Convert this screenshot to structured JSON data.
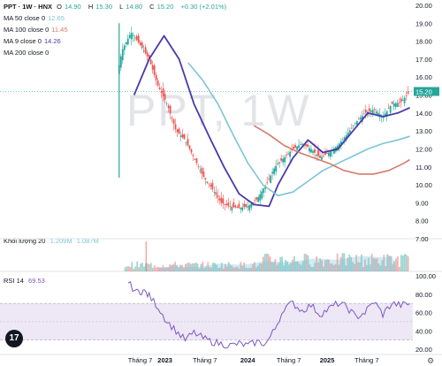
{
  "header": {
    "symbol": "PPT · 1W · HNX",
    "ohlc": [
      {
        "k": "O",
        "v": "14.90"
      },
      {
        "k": "H",
        "v": "15.30"
      },
      {
        "k": "L",
        "v": "14.80"
      },
      {
        "k": "C",
        "v": "15.20"
      }
    ],
    "change": "+0.30 (+2.01%)"
  },
  "indicators": [
    {
      "label": "MA 50 close 0",
      "value": "12.65",
      "color": "#7dc4d8"
    },
    {
      "label": "MA 100 close 0",
      "value": "11.45",
      "color": "#d27b6a"
    },
    {
      "label": "MA 9 close 0",
      "value": "14.26",
      "color": "#4a3aa8"
    },
    {
      "label": "MA 200 close 0",
      "value": "",
      "color": "#999999"
    }
  ],
  "watermark": "PPT, 1W",
  "volume_legend": {
    "label": "Khối lượng 20",
    "v1": "1.209M",
    "v2": "1.087M"
  },
  "rsi_legend": {
    "label": "RSI 14",
    "value": "69.53"
  },
  "price_tag": "15.20",
  "tv_logo": "17",
  "colors": {
    "up": "#26a69a",
    "down": "#ef5350",
    "ma50": "#7dc4d8",
    "ma100": "#d27b6a",
    "ma9": "#4a3aa8",
    "rsi": "#7e57c2",
    "rsi_band": "#ede7f6"
  },
  "chart_data": {
    "type": "line",
    "title": "",
    "price_axis": {
      "ticks": [
        "20.00",
        "19.00",
        "18.00",
        "17.00",
        "16.00",
        "15.00",
        "14.00",
        "13.00",
        "12.00",
        "11.00",
        "10.00",
        "9.00",
        "8.00",
        "7.00"
      ],
      "ylim": [
        7,
        20
      ]
    },
    "rsi_axis": {
      "ticks": [
        "100.00",
        "80.00",
        "60.00",
        "40.00",
        "20.00"
      ],
      "ylim": [
        20,
        100
      ],
      "band": [
        30,
        70
      ]
    },
    "x_ticks": [
      {
        "label": "Tháng 7",
        "t": 0.09
      },
      {
        "label": "2023",
        "t": 0.173
      },
      {
        "label": "Tháng 7",
        "t": 0.306
      },
      {
        "label": "2024",
        "t": 0.449
      },
      {
        "label": "Tháng 7",
        "t": 0.586
      },
      {
        "label": "2025",
        "t": 0.714
      },
      {
        "label": "Tháng 7",
        "t": 0.846
      }
    ],
    "series": [
      {
        "name": "MA 9",
        "t": [
          0.07,
          0.12,
          0.17,
          0.22,
          0.27,
          0.32,
          0.37,
          0.42,
          0.47,
          0.52,
          0.55,
          0.6,
          0.65,
          0.7,
          0.75,
          0.8,
          0.85,
          0.9,
          0.95,
          0.99
        ],
        "values": [
          15.0,
          17.0,
          18.3,
          17.0,
          14.5,
          12.7,
          11.0,
          9.5,
          8.9,
          8.8,
          10.0,
          11.5,
          12.5,
          11.8,
          12.0,
          13.0,
          14.0,
          13.8,
          14.0,
          14.3
        ]
      },
      {
        "name": "MA 50",
        "t": [
          0.25,
          0.3,
          0.35,
          0.4,
          0.45,
          0.5,
          0.55,
          0.6,
          0.65,
          0.7,
          0.75,
          0.8,
          0.85,
          0.9,
          0.95,
          0.99
        ],
        "values": [
          16.8,
          15.8,
          14.5,
          12.8,
          11.2,
          10.0,
          9.4,
          9.6,
          10.2,
          10.8,
          11.2,
          11.6,
          12.0,
          12.3,
          12.5,
          12.7
        ]
      },
      {
        "name": "MA 100",
        "t": [
          0.47,
          0.52,
          0.57,
          0.62,
          0.67,
          0.72,
          0.77,
          0.82,
          0.87,
          0.92,
          0.97,
          0.99
        ],
        "values": [
          13.3,
          12.8,
          12.2,
          11.8,
          11.5,
          11.2,
          10.8,
          10.6,
          10.6,
          10.8,
          11.2,
          11.4
        ]
      }
    ],
    "price_envelope": {
      "t": [
        0.0,
        0.03,
        0.06,
        0.09,
        0.12,
        0.15,
        0.18,
        0.21,
        0.24,
        0.27,
        0.3,
        0.33,
        0.36,
        0.39,
        0.42,
        0.45,
        0.48,
        0.51,
        0.54,
        0.57,
        0.6,
        0.63,
        0.66,
        0.69,
        0.72,
        0.75,
        0.78,
        0.81,
        0.84,
        0.87,
        0.9,
        0.93,
        0.96,
        0.99
      ],
      "close": [
        15.0,
        17.5,
        18.5,
        17.8,
        17.0,
        15.5,
        14.5,
        13.0,
        12.5,
        11.5,
        10.5,
        9.8,
        9.0,
        8.8,
        8.7,
        8.8,
        9.2,
        10.0,
        11.0,
        11.5,
        12.0,
        12.3,
        12.0,
        11.5,
        11.8,
        12.2,
        12.8,
        13.5,
        14.0,
        14.2,
        13.8,
        14.5,
        14.6,
        15.2
      ]
    },
    "volume": {
      "t0": 0.04,
      "t1": 0.99,
      "avg_start": 0.15,
      "avg_end": 0.95,
      "spike_at": 0.11,
      "ylim": [
        0,
        1
      ]
    },
    "rsi": {
      "t": [
        0.05,
        0.08,
        0.1,
        0.12,
        0.15,
        0.18,
        0.21,
        0.24,
        0.27,
        0.3,
        0.33,
        0.36,
        0.39,
        0.42,
        0.45,
        0.48,
        0.51,
        0.54,
        0.57,
        0.6,
        0.63,
        0.66,
        0.69,
        0.72,
        0.75,
        0.78,
        0.81,
        0.84,
        0.87,
        0.9,
        0.93,
        0.96,
        0.99
      ],
      "values": [
        92,
        82,
        84,
        78,
        66,
        50,
        40,
        30,
        38,
        32,
        28,
        26,
        24,
        26,
        24,
        28,
        26,
        42,
        65,
        70,
        62,
        68,
        58,
        64,
        70,
        66,
        55,
        60,
        72,
        58,
        70,
        68,
        69.5
      ]
    }
  }
}
